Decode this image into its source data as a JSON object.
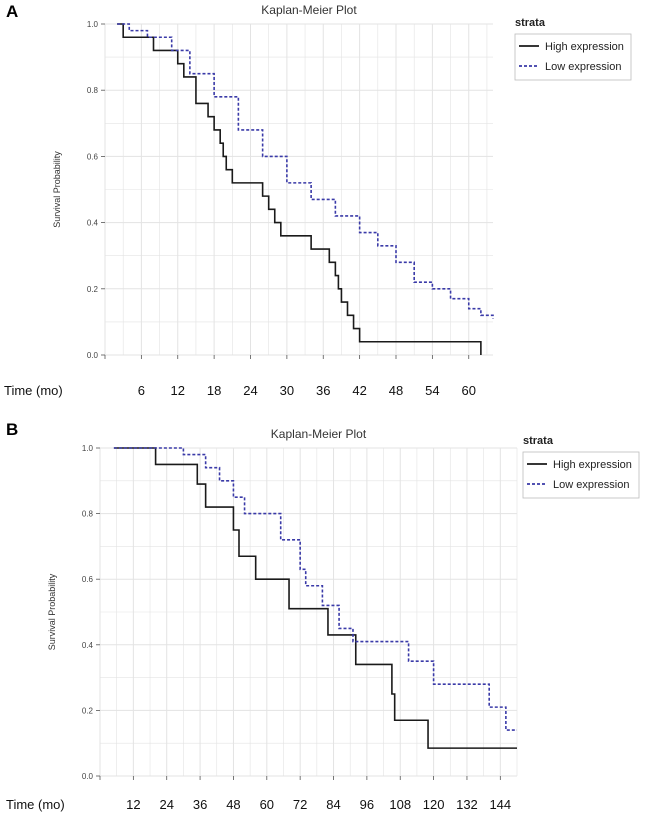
{
  "colors": {
    "high": "#1a1a1a",
    "low": "#3a3aa8",
    "grid": "#e3e3e3",
    "axis": "#555555"
  },
  "chart_data": [
    {
      "panel": "A",
      "type": "line",
      "title": "Kaplan-Meier Plot",
      "ylabel": "Survival Probability",
      "xlabel": "Time (mo)",
      "xlim": [
        0,
        64
      ],
      "ylim": [
        0,
        1
      ],
      "xticks": [
        0,
        6,
        12,
        18,
        24,
        30,
        36,
        42,
        48,
        54,
        60
      ],
      "xtick_labels": [
        "Time (mo)",
        "6",
        "12",
        "18",
        "24",
        "30",
        "36",
        "42",
        "48",
        "54",
        "60"
      ],
      "yticks": [
        0,
        0.2,
        0.4,
        0.6,
        0.8,
        1.0
      ],
      "ytick_labels": [
        "0.0",
        "0.2",
        "0.4",
        "0.6",
        "0.8",
        "1.0"
      ],
      "legend": {
        "title": "strata",
        "position": "top-right",
        "entries": [
          "High expression",
          "Low expression"
        ]
      },
      "series": [
        {
          "name": "High expression",
          "style": "solid",
          "points": [
            [
              2,
              1.0
            ],
            [
              3,
              0.96
            ],
            [
              8,
              0.92
            ],
            [
              12,
              0.88
            ],
            [
              13,
              0.84
            ],
            [
              15,
              0.76
            ],
            [
              17,
              0.72
            ],
            [
              18,
              0.68
            ],
            [
              19,
              0.64
            ],
            [
              19.5,
              0.6
            ],
            [
              20,
              0.56
            ],
            [
              21,
              0.52
            ],
            [
              26,
              0.48
            ],
            [
              27,
              0.44
            ],
            [
              28,
              0.4
            ],
            [
              29,
              0.36
            ],
            [
              34,
              0.32
            ],
            [
              37,
              0.28
            ],
            [
              38,
              0.24
            ],
            [
              38.5,
              0.2
            ],
            [
              39,
              0.16
            ],
            [
              40,
              0.12
            ],
            [
              41,
              0.08
            ],
            [
              42,
              0.04
            ],
            [
              61,
              0.04
            ],
            [
              62,
              0.0
            ]
          ]
        },
        {
          "name": "Low expression",
          "style": "dashed",
          "points": [
            [
              2,
              1.0
            ],
            [
              4,
              0.98
            ],
            [
              7,
              0.96
            ],
            [
              11,
              0.92
            ],
            [
              14,
              0.85
            ],
            [
              18,
              0.78
            ],
            [
              22,
              0.68
            ],
            [
              26,
              0.6
            ],
            [
              30,
              0.52
            ],
            [
              34,
              0.47
            ],
            [
              38,
              0.42
            ],
            [
              42,
              0.37
            ],
            [
              45,
              0.33
            ],
            [
              48,
              0.28
            ],
            [
              51,
              0.22
            ],
            [
              54,
              0.2
            ],
            [
              57,
              0.17
            ],
            [
              60,
              0.14
            ],
            [
              62,
              0.12
            ],
            [
              64,
              0.11
            ]
          ]
        }
      ]
    },
    {
      "panel": "B",
      "type": "line",
      "title": "Kaplan-Meier Plot",
      "ylabel": "Survival Probability",
      "xlabel": "Time (mo)",
      "xlim": [
        0,
        150
      ],
      "ylim": [
        0,
        1
      ],
      "xticks": [
        0,
        12,
        24,
        36,
        48,
        60,
        72,
        84,
        96,
        108,
        120,
        132,
        144
      ],
      "xtick_labels": [
        "Time (mo)",
        "12",
        "24",
        "36",
        "48",
        "60",
        "72",
        "84",
        "96",
        "108",
        "120",
        "132",
        "144"
      ],
      "yticks": [
        0,
        0.2,
        0.4,
        0.6,
        0.8,
        1.0
      ],
      "ytick_labels": [
        "0.0",
        "0.2",
        "0.4",
        "0.6",
        "0.8",
        "1.0"
      ],
      "legend": {
        "title": "strata",
        "position": "top-right",
        "entries": [
          "High expression",
          "Low expression"
        ]
      },
      "series": [
        {
          "name": "High expression",
          "style": "solid",
          "points": [
            [
              5,
              1.0
            ],
            [
              20,
              0.95
            ],
            [
              35,
              0.89
            ],
            [
              38,
              0.82
            ],
            [
              48,
              0.75
            ],
            [
              50,
              0.67
            ],
            [
              56,
              0.6
            ],
            [
              68,
              0.51
            ],
            [
              82,
              0.43
            ],
            [
              92,
              0.34
            ],
            [
              105,
              0.25
            ],
            [
              106,
              0.17
            ],
            [
              118,
              0.085
            ],
            [
              150,
              0.085
            ]
          ]
        },
        {
          "name": "Low expression",
          "style": "dashed",
          "points": [
            [
              5,
              1.0
            ],
            [
              30,
              0.98
            ],
            [
              38,
              0.94
            ],
            [
              43,
              0.9
            ],
            [
              48,
              0.85
            ],
            [
              52,
              0.8
            ],
            [
              65,
              0.72
            ],
            [
              72,
              0.63
            ],
            [
              74,
              0.58
            ],
            [
              80,
              0.52
            ],
            [
              86,
              0.45
            ],
            [
              91,
              0.41
            ],
            [
              111,
              0.35
            ],
            [
              120,
              0.28
            ],
            [
              132,
              0.28
            ],
            [
              140,
              0.21
            ],
            [
              146,
              0.14
            ],
            [
              150,
              0.14
            ]
          ]
        }
      ]
    }
  ]
}
